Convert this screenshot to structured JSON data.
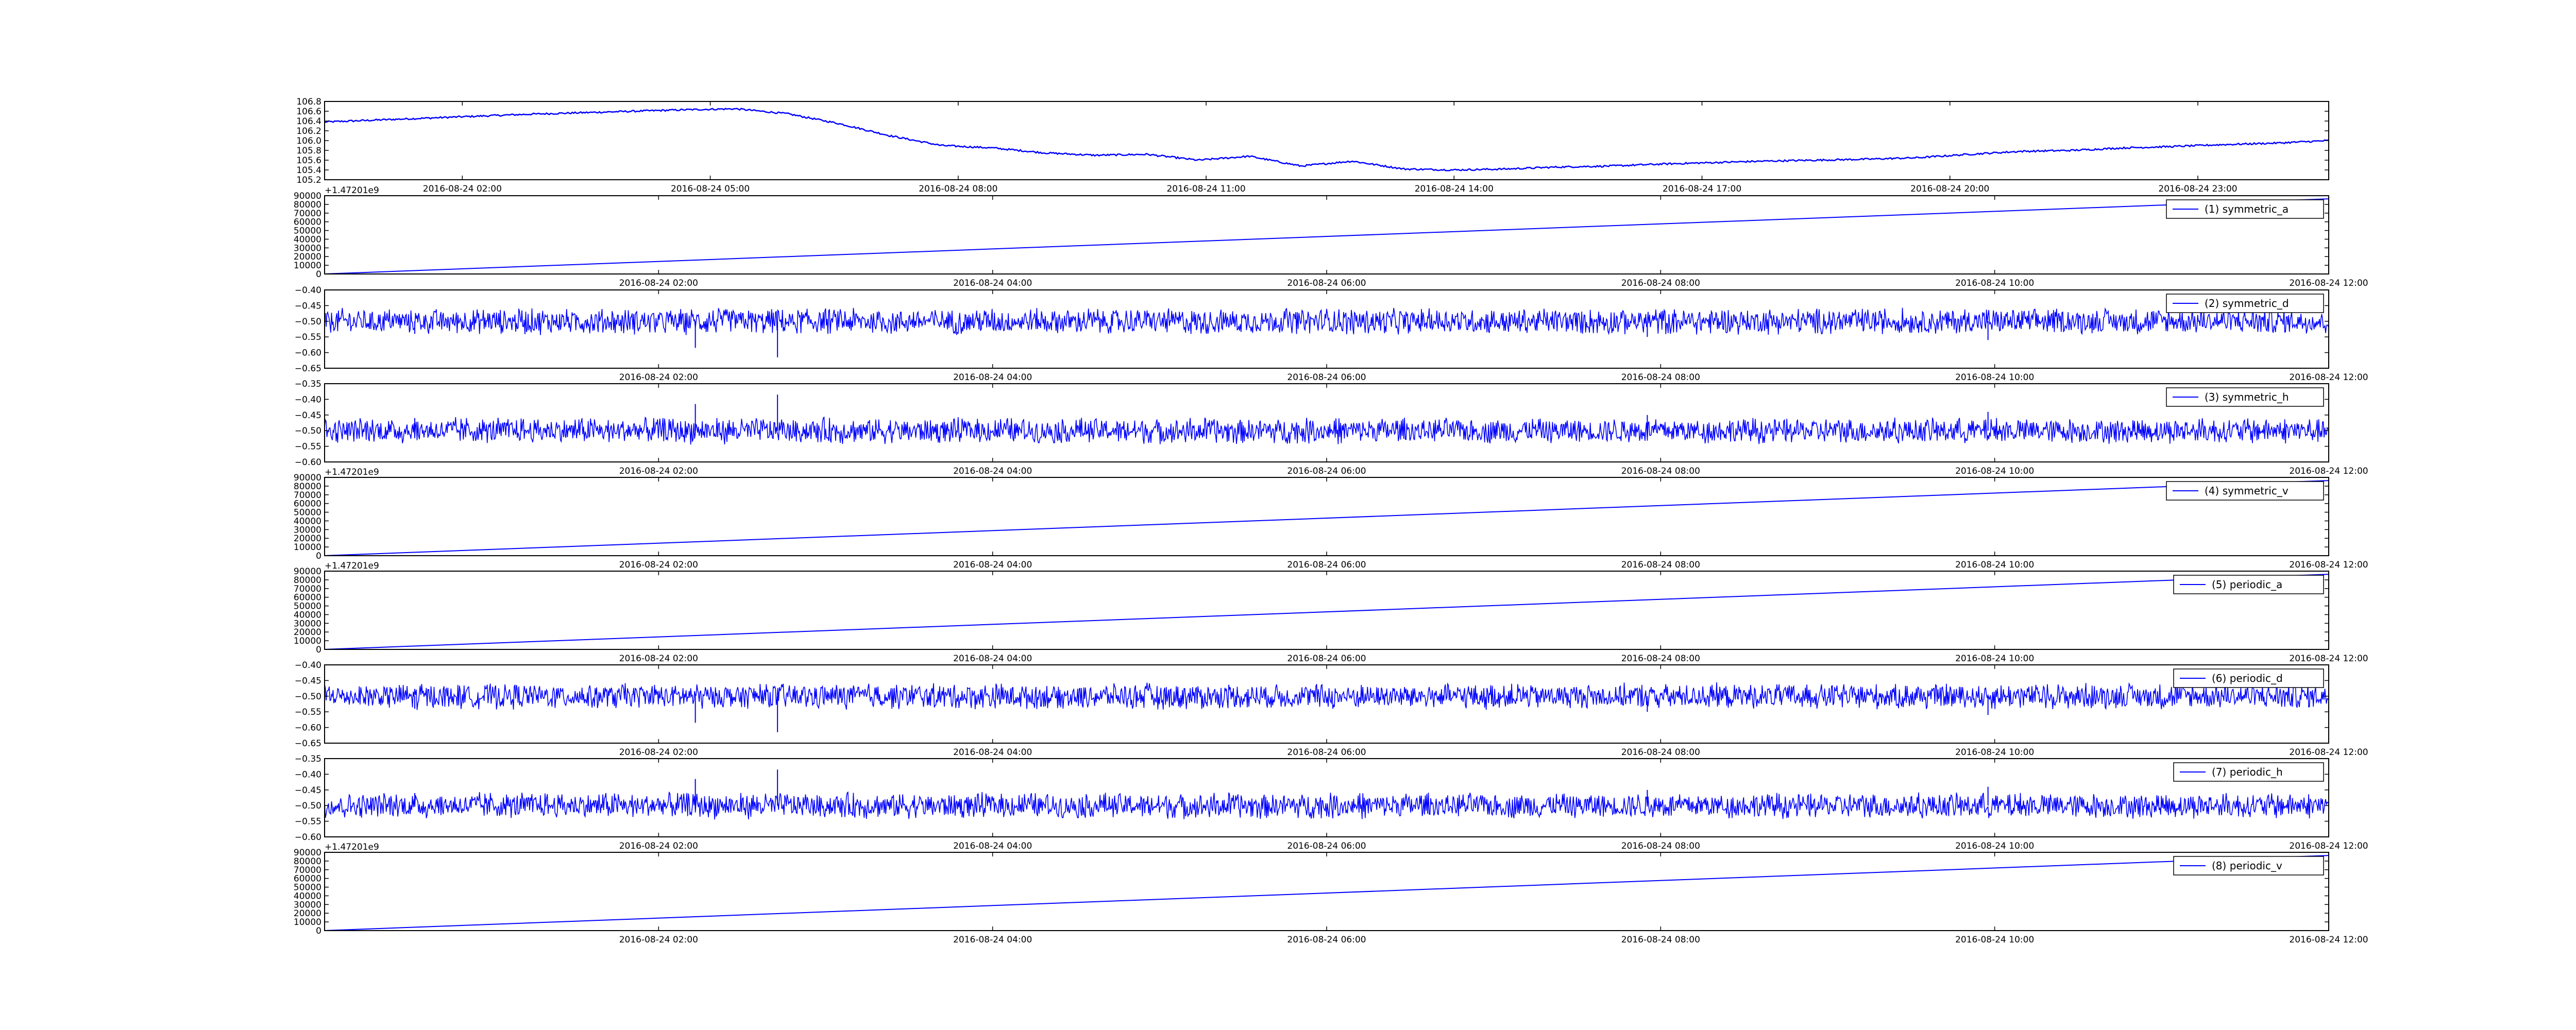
{
  "colors": {
    "series": "#0000ff",
    "axes": "#000000",
    "background": "#ffffff"
  },
  "chart_data": [
    {
      "type": "line",
      "x_time_labels": [
        "2016-08-24 02:00",
        "2016-08-24 05:00",
        "2016-08-24 08:00",
        "2016-08-24 11:00",
        "2016-08-24 14:00",
        "2016-08-24 17:00",
        "2016-08-24 20:00",
        "2016-08-24 23:00"
      ],
      "x_range": [
        "2016-08-24 00:20",
        "2016-08-24 24:35"
      ],
      "y_ticks": [
        "105.2",
        "105.4",
        "105.6",
        "105.8",
        "106.0",
        "106.2",
        "106.4",
        "106.6",
        "106.8"
      ],
      "ylim": [
        105.2,
        106.8
      ],
      "series": [
        {
          "values": [
            106.38,
            106.42,
            106.46,
            106.5,
            106.54,
            106.57,
            106.6,
            106.63,
            106.65,
            106.55,
            106.35,
            106.1,
            105.9,
            105.85,
            105.75,
            105.7,
            105.72,
            105.6,
            105.68,
            105.48,
            105.58,
            105.42,
            105.4,
            105.42,
            105.46,
            105.48,
            105.52,
            105.55,
            105.58,
            105.6,
            105.62,
            105.65,
            105.72,
            105.78,
            105.8,
            105.85,
            105.88,
            105.92,
            105.95,
            106.0
          ]
        }
      ]
    },
    {
      "type": "line",
      "x_time_labels": [
        "2016-08-24 02:00",
        "2016-08-24 04:00",
        "2016-08-24 06:00",
        "2016-08-24 08:00",
        "2016-08-24 10:00",
        "2016-08-24 12:00"
      ],
      "x_range": [
        "2016-08-24 00:00",
        "2016-08-24 12:00"
      ],
      "y_offset": "+1.47201e9",
      "y_ticks": [
        "0",
        "10000",
        "20000",
        "30000",
        "40000",
        "50000",
        "60000",
        "70000",
        "80000",
        "90000"
      ],
      "ylim": [
        0,
        90000
      ],
      "series": [
        {
          "name": "(1) symmetric_a",
          "values": [
            0,
            86400
          ]
        }
      ]
    },
    {
      "type": "line",
      "x_time_labels": [
        "2016-08-24 02:00",
        "2016-08-24 04:00",
        "2016-08-24 06:00",
        "2016-08-24 08:00",
        "2016-08-24 10:00",
        "2016-08-24 12:00"
      ],
      "x_range": [
        "2016-08-24 00:00",
        "2016-08-24 12:00"
      ],
      "y_ticks": [
        "−0.65",
        "−0.60",
        "−0.55",
        "−0.50",
        "−0.45",
        "−0.40"
      ],
      "ylim": [
        -0.65,
        -0.4
      ],
      "series": [
        {
          "name": "(2) symmetric_d",
          "values": [
            -0.5
          ]
        }
      ]
    },
    {
      "type": "line",
      "x_time_labels": [
        "2016-08-24 02:00",
        "2016-08-24 04:00",
        "2016-08-24 06:00",
        "2016-08-24 08:00",
        "2016-08-24 10:00",
        "2016-08-24 12:00"
      ],
      "x_range": [
        "2016-08-24 00:00",
        "2016-08-24 12:00"
      ],
      "y_ticks": [
        "−0.60",
        "−0.55",
        "−0.50",
        "−0.45",
        "−0.40",
        "−0.35"
      ],
      "ylim": [
        -0.6,
        -0.35
      ],
      "series": [
        {
          "name": "(3) symmetric_h",
          "values": [
            -0.5
          ]
        }
      ]
    },
    {
      "type": "line",
      "x_time_labels": [
        "2016-08-24 02:00",
        "2016-08-24 04:00",
        "2016-08-24 06:00",
        "2016-08-24 08:00",
        "2016-08-24 10:00",
        "2016-08-24 12:00"
      ],
      "x_range": [
        "2016-08-24 00:00",
        "2016-08-24 12:00"
      ],
      "y_offset": "+1.47201e9",
      "y_ticks": [
        "0",
        "10000",
        "20000",
        "30000",
        "40000",
        "50000",
        "60000",
        "70000",
        "80000",
        "90000"
      ],
      "ylim": [
        0,
        90000
      ],
      "series": [
        {
          "name": "(4) symmetric_v",
          "values": [
            0,
            86400
          ]
        }
      ]
    },
    {
      "type": "line",
      "x_time_labels": [
        "2016-08-24 02:00",
        "2016-08-24 04:00",
        "2016-08-24 06:00",
        "2016-08-24 08:00",
        "2016-08-24 10:00",
        "2016-08-24 12:00"
      ],
      "x_range": [
        "2016-08-24 00:00",
        "2016-08-24 12:00"
      ],
      "y_offset": "+1.47201e9",
      "y_ticks": [
        "0",
        "10000",
        "20000",
        "30000",
        "40000",
        "50000",
        "60000",
        "70000",
        "80000",
        "90000"
      ],
      "ylim": [
        0,
        90000
      ],
      "series": [
        {
          "name": "(5) periodic_a",
          "values": [
            0,
            86400
          ]
        }
      ]
    },
    {
      "type": "line",
      "x_time_labels": [
        "2016-08-24 02:00",
        "2016-08-24 04:00",
        "2016-08-24 06:00",
        "2016-08-24 08:00",
        "2016-08-24 10:00",
        "2016-08-24 12:00"
      ],
      "x_range": [
        "2016-08-24 00:00",
        "2016-08-24 12:00"
      ],
      "y_ticks": [
        "−0.65",
        "−0.60",
        "−0.55",
        "−0.50",
        "−0.45",
        "−0.40"
      ],
      "ylim": [
        -0.65,
        -0.4
      ],
      "series": [
        {
          "name": "(6) periodic_d",
          "values": [
            -0.5
          ]
        }
      ]
    },
    {
      "type": "line",
      "x_time_labels": [
        "2016-08-24 02:00",
        "2016-08-24 04:00",
        "2016-08-24 06:00",
        "2016-08-24 08:00",
        "2016-08-24 10:00",
        "2016-08-24 12:00"
      ],
      "x_range": [
        "2016-08-24 00:00",
        "2016-08-24 12:00"
      ],
      "y_ticks": [
        "−0.60",
        "−0.55",
        "−0.50",
        "−0.45",
        "−0.40",
        "−0.35"
      ],
      "ylim": [
        -0.6,
        -0.35
      ],
      "series": [
        {
          "name": "(7) periodic_h",
          "values": [
            -0.5
          ]
        }
      ]
    },
    {
      "type": "line",
      "x_time_labels": [
        "2016-08-24 02:00",
        "2016-08-24 04:00",
        "2016-08-24 06:00",
        "2016-08-24 08:00",
        "2016-08-24 10:00",
        "2016-08-24 12:00"
      ],
      "x_range": [
        "2016-08-24 00:00",
        "2016-08-24 12:00"
      ],
      "y_offset": "+1.47201e9",
      "y_ticks": [
        "0",
        "10000",
        "20000",
        "30000",
        "40000",
        "50000",
        "60000",
        "70000",
        "80000",
        "90000"
      ],
      "ylim": [
        0,
        90000
      ],
      "series": [
        {
          "name": "(8) periodic_v",
          "values": [
            0,
            86400
          ]
        }
      ]
    }
  ]
}
